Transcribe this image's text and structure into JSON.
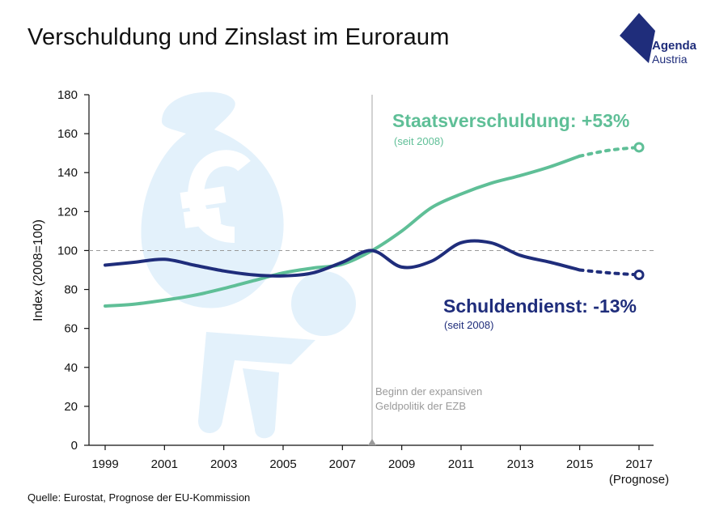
{
  "title": "Verschuldung und Zinslast im Euroraum",
  "logo": {
    "line1": "Agenda",
    "line2": "Austria",
    "color": "#1f2d7b"
  },
  "source": "Quelle: Eurostat, Prognose der EU-Kommission",
  "annotations": {
    "ecb_line1": "Beginn der expansiven",
    "ecb_line2": "Geldpolitik der EZB",
    "debt_label": "Staatsverschuldung: +53%",
    "debt_since": "(seit 2008)",
    "service_label": "Schuldendienst: -13%",
    "service_since": "(seit 2008)",
    "forecast_label": "(Prognose)"
  },
  "colors": {
    "debt": "#5fbf97",
    "service": "#1f2d7b",
    "background_icon": "#e3f1fb",
    "reference": "#9a9a9a"
  },
  "background_icon": "money-bag-carrier-icon",
  "chart_data": {
    "type": "line",
    "title": "Verschuldung und Zinslast im Euroraum",
    "xlabel": "",
    "ylabel": "Index (2008=100)",
    "xlim": [
      1999,
      2017
    ],
    "ylim": [
      0,
      180
    ],
    "x_ticks": [
      1999,
      2001,
      2003,
      2005,
      2007,
      2009,
      2011,
      2013,
      2015,
      2017
    ],
    "y_ticks": [
      0,
      20,
      40,
      60,
      80,
      100,
      120,
      140,
      160,
      180
    ],
    "reference_line_y": 100,
    "vertical_marker_x": 2008,
    "grid": false,
    "series": [
      {
        "name": "Staatsverschuldung",
        "x": [
          1999,
          2000,
          2001,
          2002,
          2003,
          2004,
          2005,
          2006,
          2007,
          2008,
          2009,
          2010,
          2011,
          2012,
          2013,
          2014,
          2015
        ],
        "values": [
          71.5,
          72.5,
          74.5,
          77,
          80.5,
          84.5,
          88.5,
          91,
          93,
          100,
          110,
          122,
          129,
          134.5,
          138.5,
          143,
          148.5
        ],
        "forecast_x": [
          2015,
          2016,
          2017
        ],
        "forecast_values": [
          148.5,
          151.5,
          153
        ]
      },
      {
        "name": "Schuldendienst",
        "x": [
          1999,
          2000,
          2001,
          2002,
          2003,
          2004,
          2005,
          2006,
          2007,
          2008,
          2009,
          2010,
          2011,
          2012,
          2013,
          2014,
          2015
        ],
        "values": [
          92.5,
          94,
          95.5,
          92.5,
          89.5,
          87.5,
          87,
          88.5,
          94,
          100,
          91.5,
          94.5,
          104,
          104,
          97.5,
          94,
          90
        ],
        "forecast_x": [
          2015,
          2016,
          2017
        ],
        "forecast_values": [
          90,
          88.5,
          87.5
        ]
      }
    ]
  }
}
